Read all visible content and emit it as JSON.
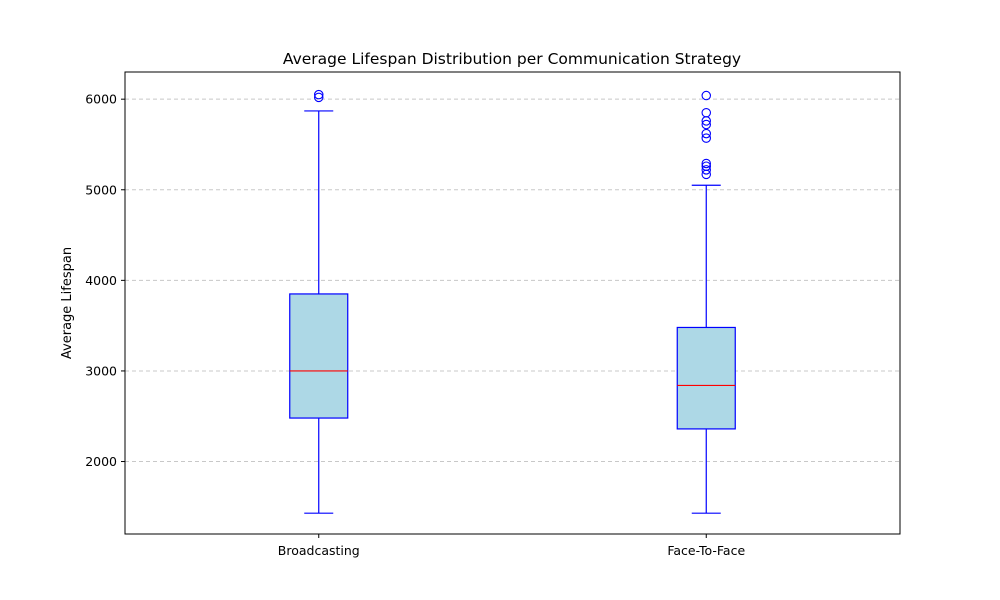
{
  "chart_data": {
    "type": "box",
    "title": "Average Lifespan Distribution per Communication Strategy",
    "xlabel": "",
    "ylabel": "Average Lifespan",
    "categories": [
      "Broadcasting",
      "Face-To-Face"
    ],
    "ylim": [
      1200,
      6300
    ],
    "yticks": [
      2000,
      3000,
      4000,
      5000,
      6000
    ],
    "grid": "y-dashed",
    "colors": {
      "box_fill": "#add8e6",
      "box_edge": "#0000ff",
      "median": "#ff0000",
      "whisker": "#0000ff",
      "outlier": "#0000ff",
      "grid": "#c8c8c8"
    },
    "boxes": [
      {
        "category": "Broadcasting",
        "whisker_low": 1430,
        "q1": 2480,
        "median": 3000,
        "q3": 3850,
        "whisker_high": 5870,
        "outliers": [
          6020,
          6050
        ]
      },
      {
        "category": "Face-To-Face",
        "whisker_low": 1430,
        "q1": 2360,
        "median": 2840,
        "q3": 3480,
        "whisker_high": 5050,
        "outliers": [
          5170,
          5220,
          5260,
          5290,
          5570,
          5620,
          5720,
          5760,
          5850,
          6040
        ]
      }
    ]
  }
}
